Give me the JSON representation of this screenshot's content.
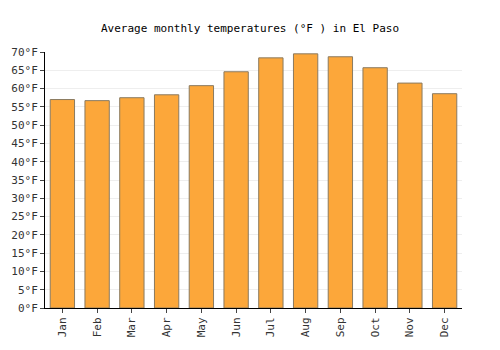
{
  "chart_data": {
    "type": "bar",
    "title": "Average monthly temperatures (°F ) in El Paso",
    "categories": [
      "Jan",
      "Feb",
      "Mar",
      "Apr",
      "May",
      "Jun",
      "Jul",
      "Aug",
      "Sep",
      "Oct",
      "Nov",
      "Dec"
    ],
    "values": [
      57.0,
      56.7,
      57.5,
      58.3,
      60.8,
      64.6,
      68.4,
      69.5,
      68.7,
      65.7,
      61.5,
      58.6
    ],
    "color": "#fca73a",
    "ylim": [
      0,
      70
    ],
    "yticks": [
      {
        "value": 0,
        "label": "0°F"
      },
      {
        "value": 5,
        "label": "5°F"
      },
      {
        "value": 10,
        "label": "10°F"
      },
      {
        "value": 15,
        "label": "15°F"
      },
      {
        "value": 20,
        "label": "20°F"
      },
      {
        "value": 25,
        "label": "25°F"
      },
      {
        "value": 30,
        "label": "30°F"
      },
      {
        "value": 35,
        "label": "35°F"
      },
      {
        "value": 40,
        "label": "40°F"
      },
      {
        "value": 45,
        "label": "45°F"
      },
      {
        "value": 50,
        "label": "50°F"
      },
      {
        "value": 55,
        "label": "55°F"
      },
      {
        "value": 60,
        "label": "60°F"
      },
      {
        "value": 65,
        "label": "65°F"
      },
      {
        "value": 70,
        "label": "70°F"
      }
    ],
    "grid": true
  }
}
